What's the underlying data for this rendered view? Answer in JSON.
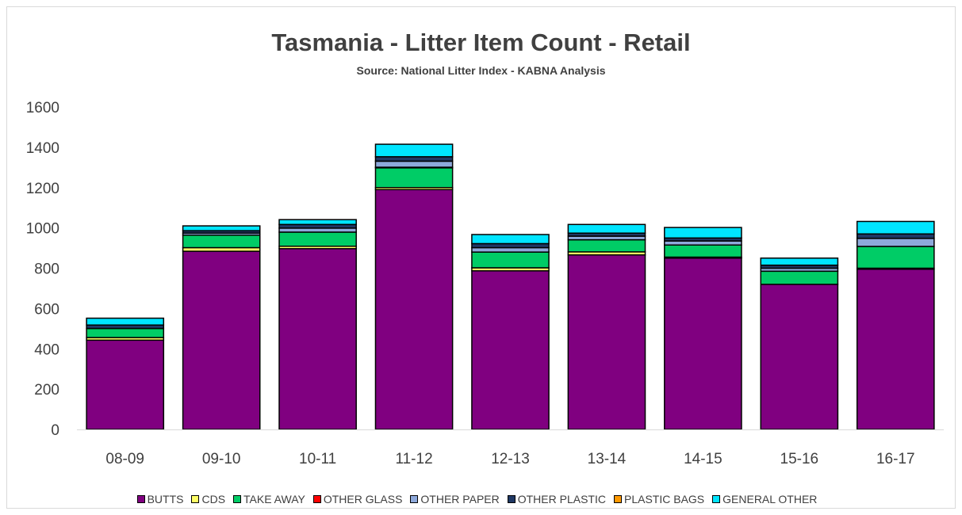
{
  "chart_data": {
    "type": "bar",
    "stacked": true,
    "title": "Tasmania - Litter Item Count - Retail",
    "subtitle": "Source: National Litter Index - KABNA Analysis",
    "xlabel": "",
    "ylabel": "",
    "ylim": [
      0,
      1600
    ],
    "yticks": [
      "0",
      "200",
      "400",
      "600",
      "800",
      "1000",
      "1200",
      "1400",
      "1600"
    ],
    "grid": false,
    "legend_position": "bottom",
    "categories": [
      "08-09",
      "09-10",
      "10-11",
      "11-12",
      "12-13",
      "13-14",
      "14-15",
      "15-16",
      "16-17"
    ],
    "series": [
      {
        "name": "BUTTS",
        "color": "#800080",
        "values": [
          443,
          884,
          897,
          1190,
          787,
          866,
          850,
          720,
          795
        ]
      },
      {
        "name": "CDS",
        "color": "#ffff66",
        "values": [
          13,
          18,
          12,
          10,
          15,
          15,
          5,
          0,
          5
        ]
      },
      {
        "name": "TAKE AWAY",
        "color": "#00cc66",
        "values": [
          45,
          62,
          70,
          98,
          78,
          60,
          60,
          65,
          108
        ]
      },
      {
        "name": "OTHER GLASS",
        "color": "#ff0000",
        "values": [
          0,
          0,
          0,
          3,
          0,
          0,
          0,
          0,
          0
        ]
      },
      {
        "name": "OTHER PAPER",
        "color": "#8ea9db",
        "values": [
          0,
          10,
          20,
          30,
          22,
          18,
          20,
          15,
          40
        ]
      },
      {
        "name": "OTHER PLASTIC",
        "color": "#1f3864",
        "values": [
          17,
          12,
          18,
          22,
          20,
          15,
          15,
          15,
          22
        ]
      },
      {
        "name": "PLASTIC BAGS",
        "color": "#ff9900",
        "values": [
          0,
          0,
          0,
          0,
          0,
          0,
          0,
          0,
          0
        ]
      },
      {
        "name": "GENERAL OTHER",
        "color": "#00e5ff",
        "values": [
          34,
          24,
          24,
          62,
          45,
          43,
          52,
          35,
          62
        ]
      }
    ]
  }
}
